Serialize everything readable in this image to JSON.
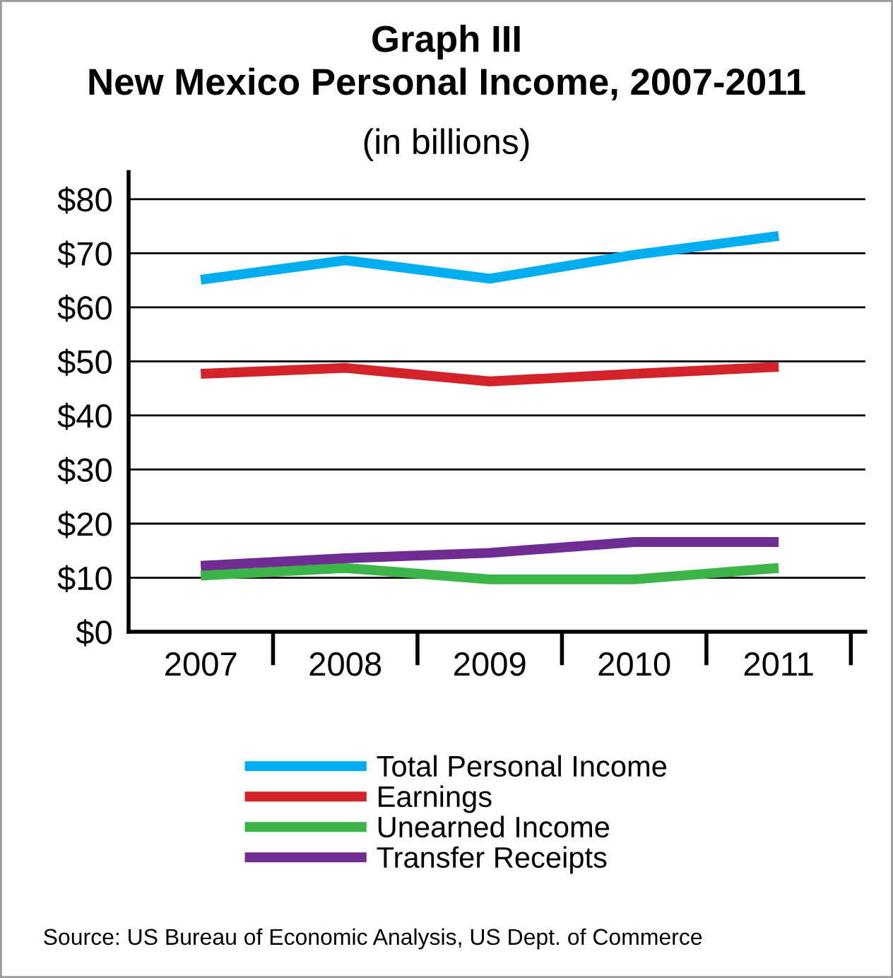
{
  "chart_data": {
    "type": "line",
    "title": "Graph III\nNew Mexico Personal Income, 2007-2011",
    "subtitle": "(in billions)",
    "categories": [
      "2007",
      "2008",
      "2009",
      "2010",
      "2011"
    ],
    "series": [
      {
        "name": "Total Personal Income",
        "color": "#00aeef",
        "values": [
          65.1,
          68.7,
          65.3,
          69.7,
          73.2
        ]
      },
      {
        "name": "Earnings",
        "color": "#d2232a",
        "values": [
          47.7,
          48.8,
          46.3,
          47.7,
          49.0
        ]
      },
      {
        "name": "Unearned Income",
        "color": "#3cb44a",
        "values": [
          10.4,
          11.8,
          9.7,
          9.7,
          11.8
        ]
      },
      {
        "name": "Transfer Receipts",
        "color": "#6f2c91",
        "values": [
          12.2,
          13.6,
          14.6,
          16.6,
          16.6
        ]
      }
    ],
    "ylim": [
      0,
      85
    ],
    "yticks": [
      {
        "value": 0,
        "label": "$0"
      },
      {
        "value": 10,
        "label": "$10"
      },
      {
        "value": 20,
        "label": "$20"
      },
      {
        "value": 30,
        "label": "$30"
      },
      {
        "value": 40,
        "label": "$40"
      },
      {
        "value": 50,
        "label": "$50"
      },
      {
        "value": 60,
        "label": "$60"
      },
      {
        "value": 70,
        "label": "$70"
      },
      {
        "value": 80,
        "label": "$80"
      }
    ],
    "grid": "y",
    "legend": "bottom",
    "marker": "none",
    "line_style": "solid",
    "annotations": [
      "Source: US Bureau of Economic Analysis, US Dept. of Commerce"
    ]
  }
}
